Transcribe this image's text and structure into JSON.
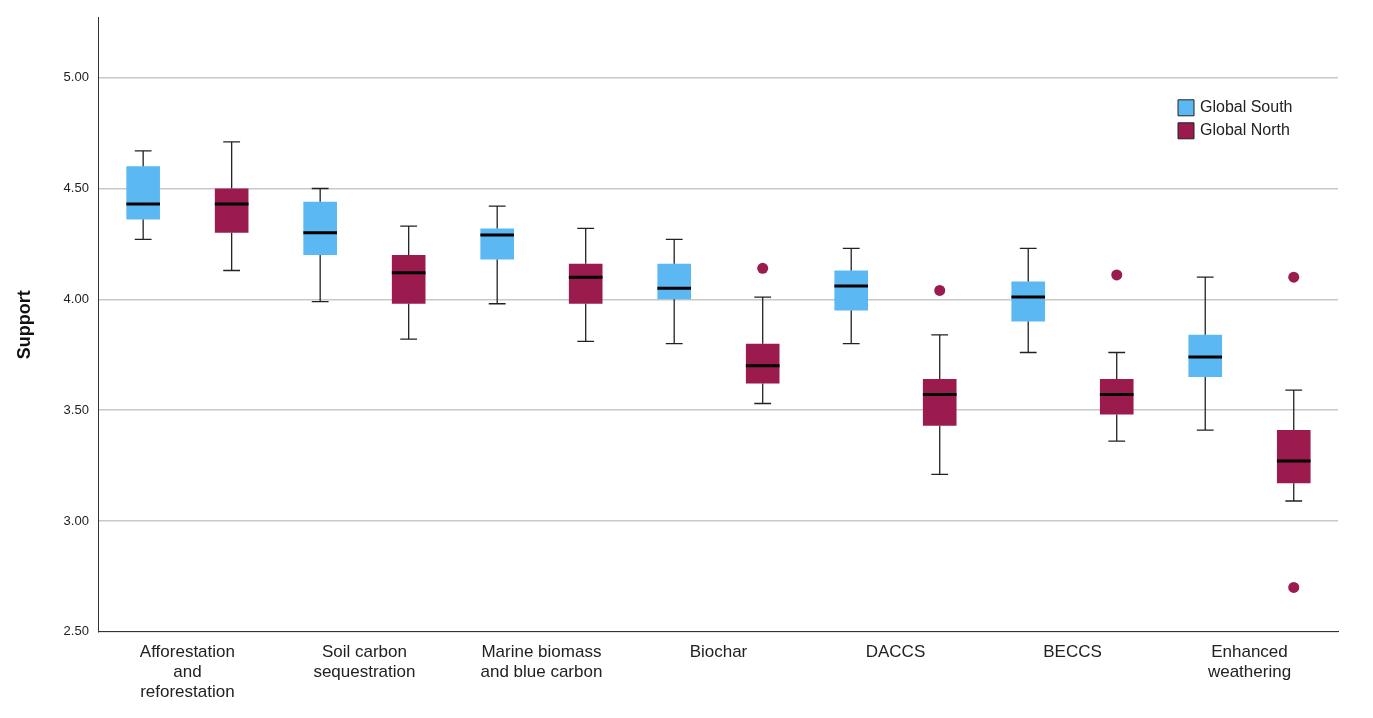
{
  "chart_data": {
    "type": "box",
    "ylabel": "Support",
    "categories": [
      "Afforestation and reforestation",
      "Soil carbon sequestration",
      "Marine biomass and blue carbon",
      "Biochar",
      "DACCS",
      "BECCS",
      "Enhanced weathering"
    ],
    "series": [
      {
        "name": "Global South",
        "color": "#5cb8f2",
        "boxes": [
          {
            "low": 4.27,
            "q1": 4.36,
            "median": 4.43,
            "q3": 4.6,
            "high": 4.67
          },
          {
            "low": 3.99,
            "q1": 4.2,
            "median": 4.3,
            "q3": 4.44,
            "high": 4.5
          },
          {
            "low": 3.98,
            "q1": 4.18,
            "median": 4.29,
            "q3": 4.32,
            "high": 4.42
          },
          {
            "low": 3.8,
            "q1": 4.0,
            "median": 4.05,
            "q3": 4.16,
            "high": 4.27
          },
          {
            "low": 3.8,
            "q1": 3.95,
            "median": 4.06,
            "q3": 4.13,
            "high": 4.23
          },
          {
            "low": 3.76,
            "q1": 3.9,
            "median": 4.01,
            "q3": 4.08,
            "high": 4.23
          },
          {
            "low": 3.41,
            "q1": 3.65,
            "median": 3.74,
            "q3": 3.84,
            "high": 4.1
          }
        ]
      },
      {
        "name": "Global North",
        "color": "#9b1b4e",
        "boxes": [
          {
            "low": 4.13,
            "q1": 4.3,
            "median": 4.43,
            "q3": 4.5,
            "high": 4.71
          },
          {
            "low": 3.82,
            "q1": 3.98,
            "median": 4.12,
            "q3": 4.2,
            "high": 4.33
          },
          {
            "low": 3.81,
            "q1": 3.98,
            "median": 4.1,
            "q3": 4.16,
            "high": 4.32
          },
          {
            "low": 3.53,
            "q1": 3.62,
            "median": 3.7,
            "q3": 3.8,
            "high": 4.01,
            "outliers": [
              4.14
            ]
          },
          {
            "low": 3.21,
            "q1": 3.43,
            "median": 3.57,
            "q3": 3.64,
            "high": 3.84,
            "outliers": [
              4.04
            ]
          },
          {
            "low": 3.36,
            "q1": 3.48,
            "median": 3.57,
            "q3": 3.64,
            "high": 3.76,
            "outliers": [
              4.11
            ]
          },
          {
            "low": 3.09,
            "q1": 3.17,
            "median": 3.27,
            "q3": 3.41,
            "high": 3.59,
            "outliers": [
              4.1,
              2.7
            ]
          }
        ]
      }
    ],
    "ylim": [
      2.5,
      5.27
    ],
    "yticks": [
      {
        "value": 2.5,
        "label": "2.50"
      },
      {
        "value": 3,
        "label": "3.00"
      },
      {
        "value": 3.5,
        "label": "3.50"
      },
      {
        "value": 4,
        "label": "4.00"
      },
      {
        "value": 4.5,
        "label": "4.50"
      },
      {
        "value": 5,
        "label": "5.00"
      }
    ],
    "grid": "y",
    "legend": "top right"
  }
}
